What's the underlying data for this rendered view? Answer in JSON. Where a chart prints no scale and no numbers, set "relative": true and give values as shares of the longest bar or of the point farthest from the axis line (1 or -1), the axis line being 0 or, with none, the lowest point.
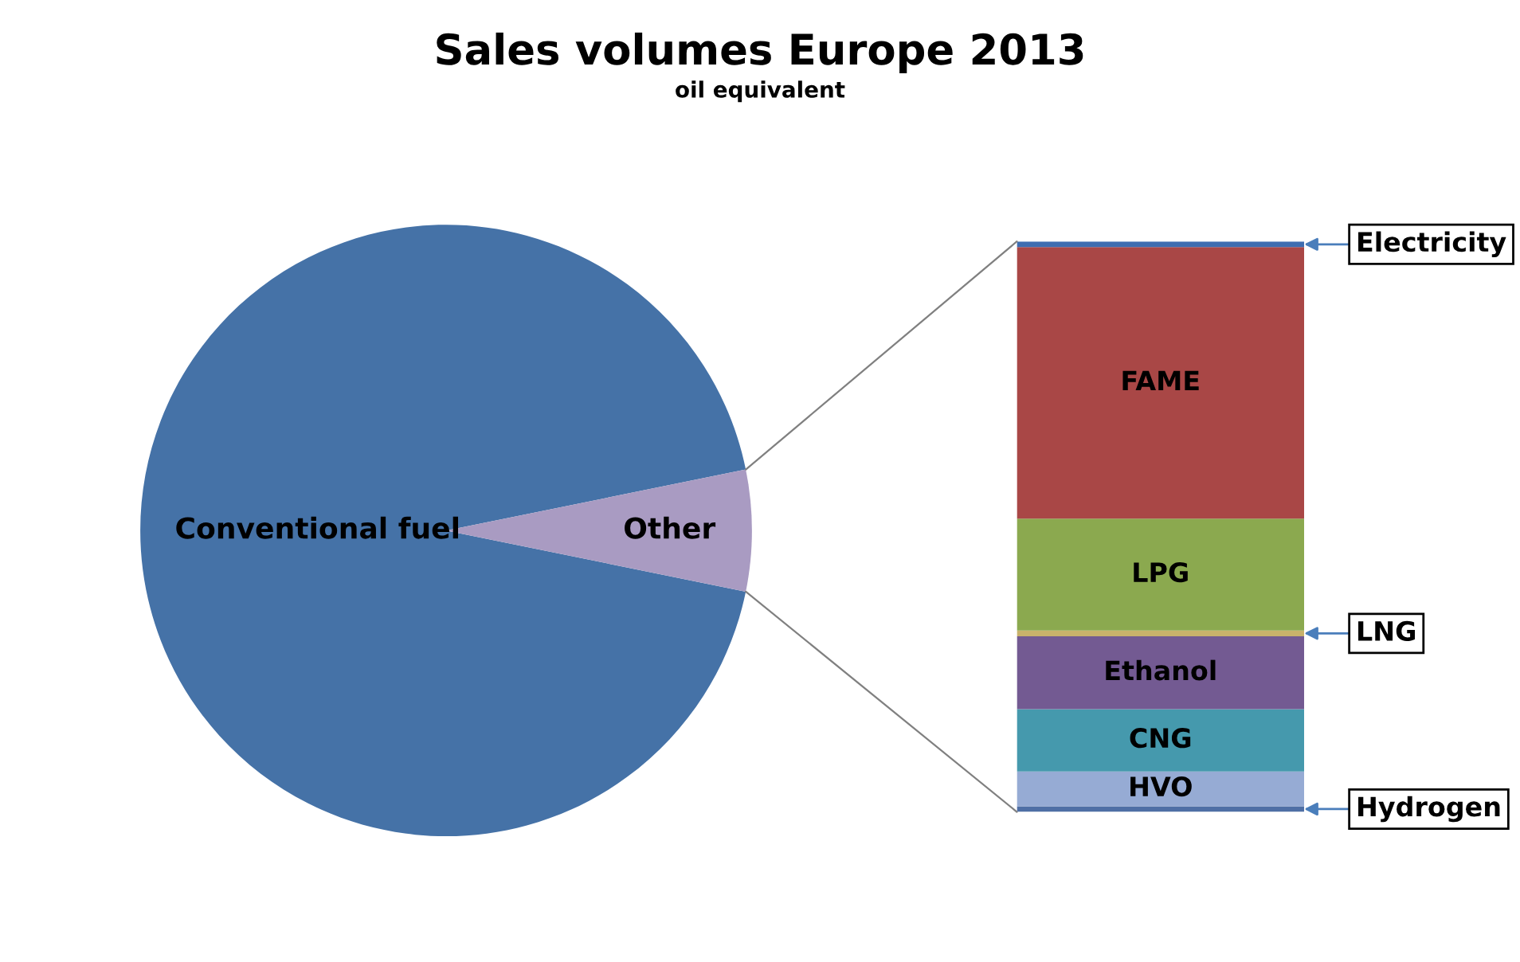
{
  "chart_data": [
    {
      "type": "pie",
      "title": "Sales volumes Europe 2013",
      "subtitle": "oil equivalent",
      "categories": [
        "Conventional fuel",
        "Other"
      ],
      "values": [
        93.6,
        6.4
      ],
      "colors": [
        "#4572a7",
        "#a99bc2"
      ]
    },
    {
      "type": "bar",
      "stacked": true,
      "relative": true,
      "categories": [
        null
      ],
      "series": [
        {
          "name": "Hydrogen",
          "color": "#4f6fa5",
          "values": [
            0.01
          ]
        },
        {
          "name": "HVO",
          "color": "#96abd4",
          "values": [
            0.061
          ]
        },
        {
          "name": "CNG",
          "color": "#4599ad",
          "values": [
            0.109
          ]
        },
        {
          "name": "Ethanol",
          "color": "#735a92",
          "values": [
            0.128
          ]
        },
        {
          "name": "LNG",
          "color": "#c9b26b",
          "values": [
            0.01
          ]
        },
        {
          "name": "LPG",
          "color": "#8ba94f",
          "values": [
            0.196
          ]
        },
        {
          "name": "FAME",
          "color": "#a94746",
          "values": [
            0.476
          ]
        },
        {
          "name": "Electricity",
          "color": "#3e6db0",
          "values": [
            0.01
          ]
        }
      ]
    }
  ]
}
